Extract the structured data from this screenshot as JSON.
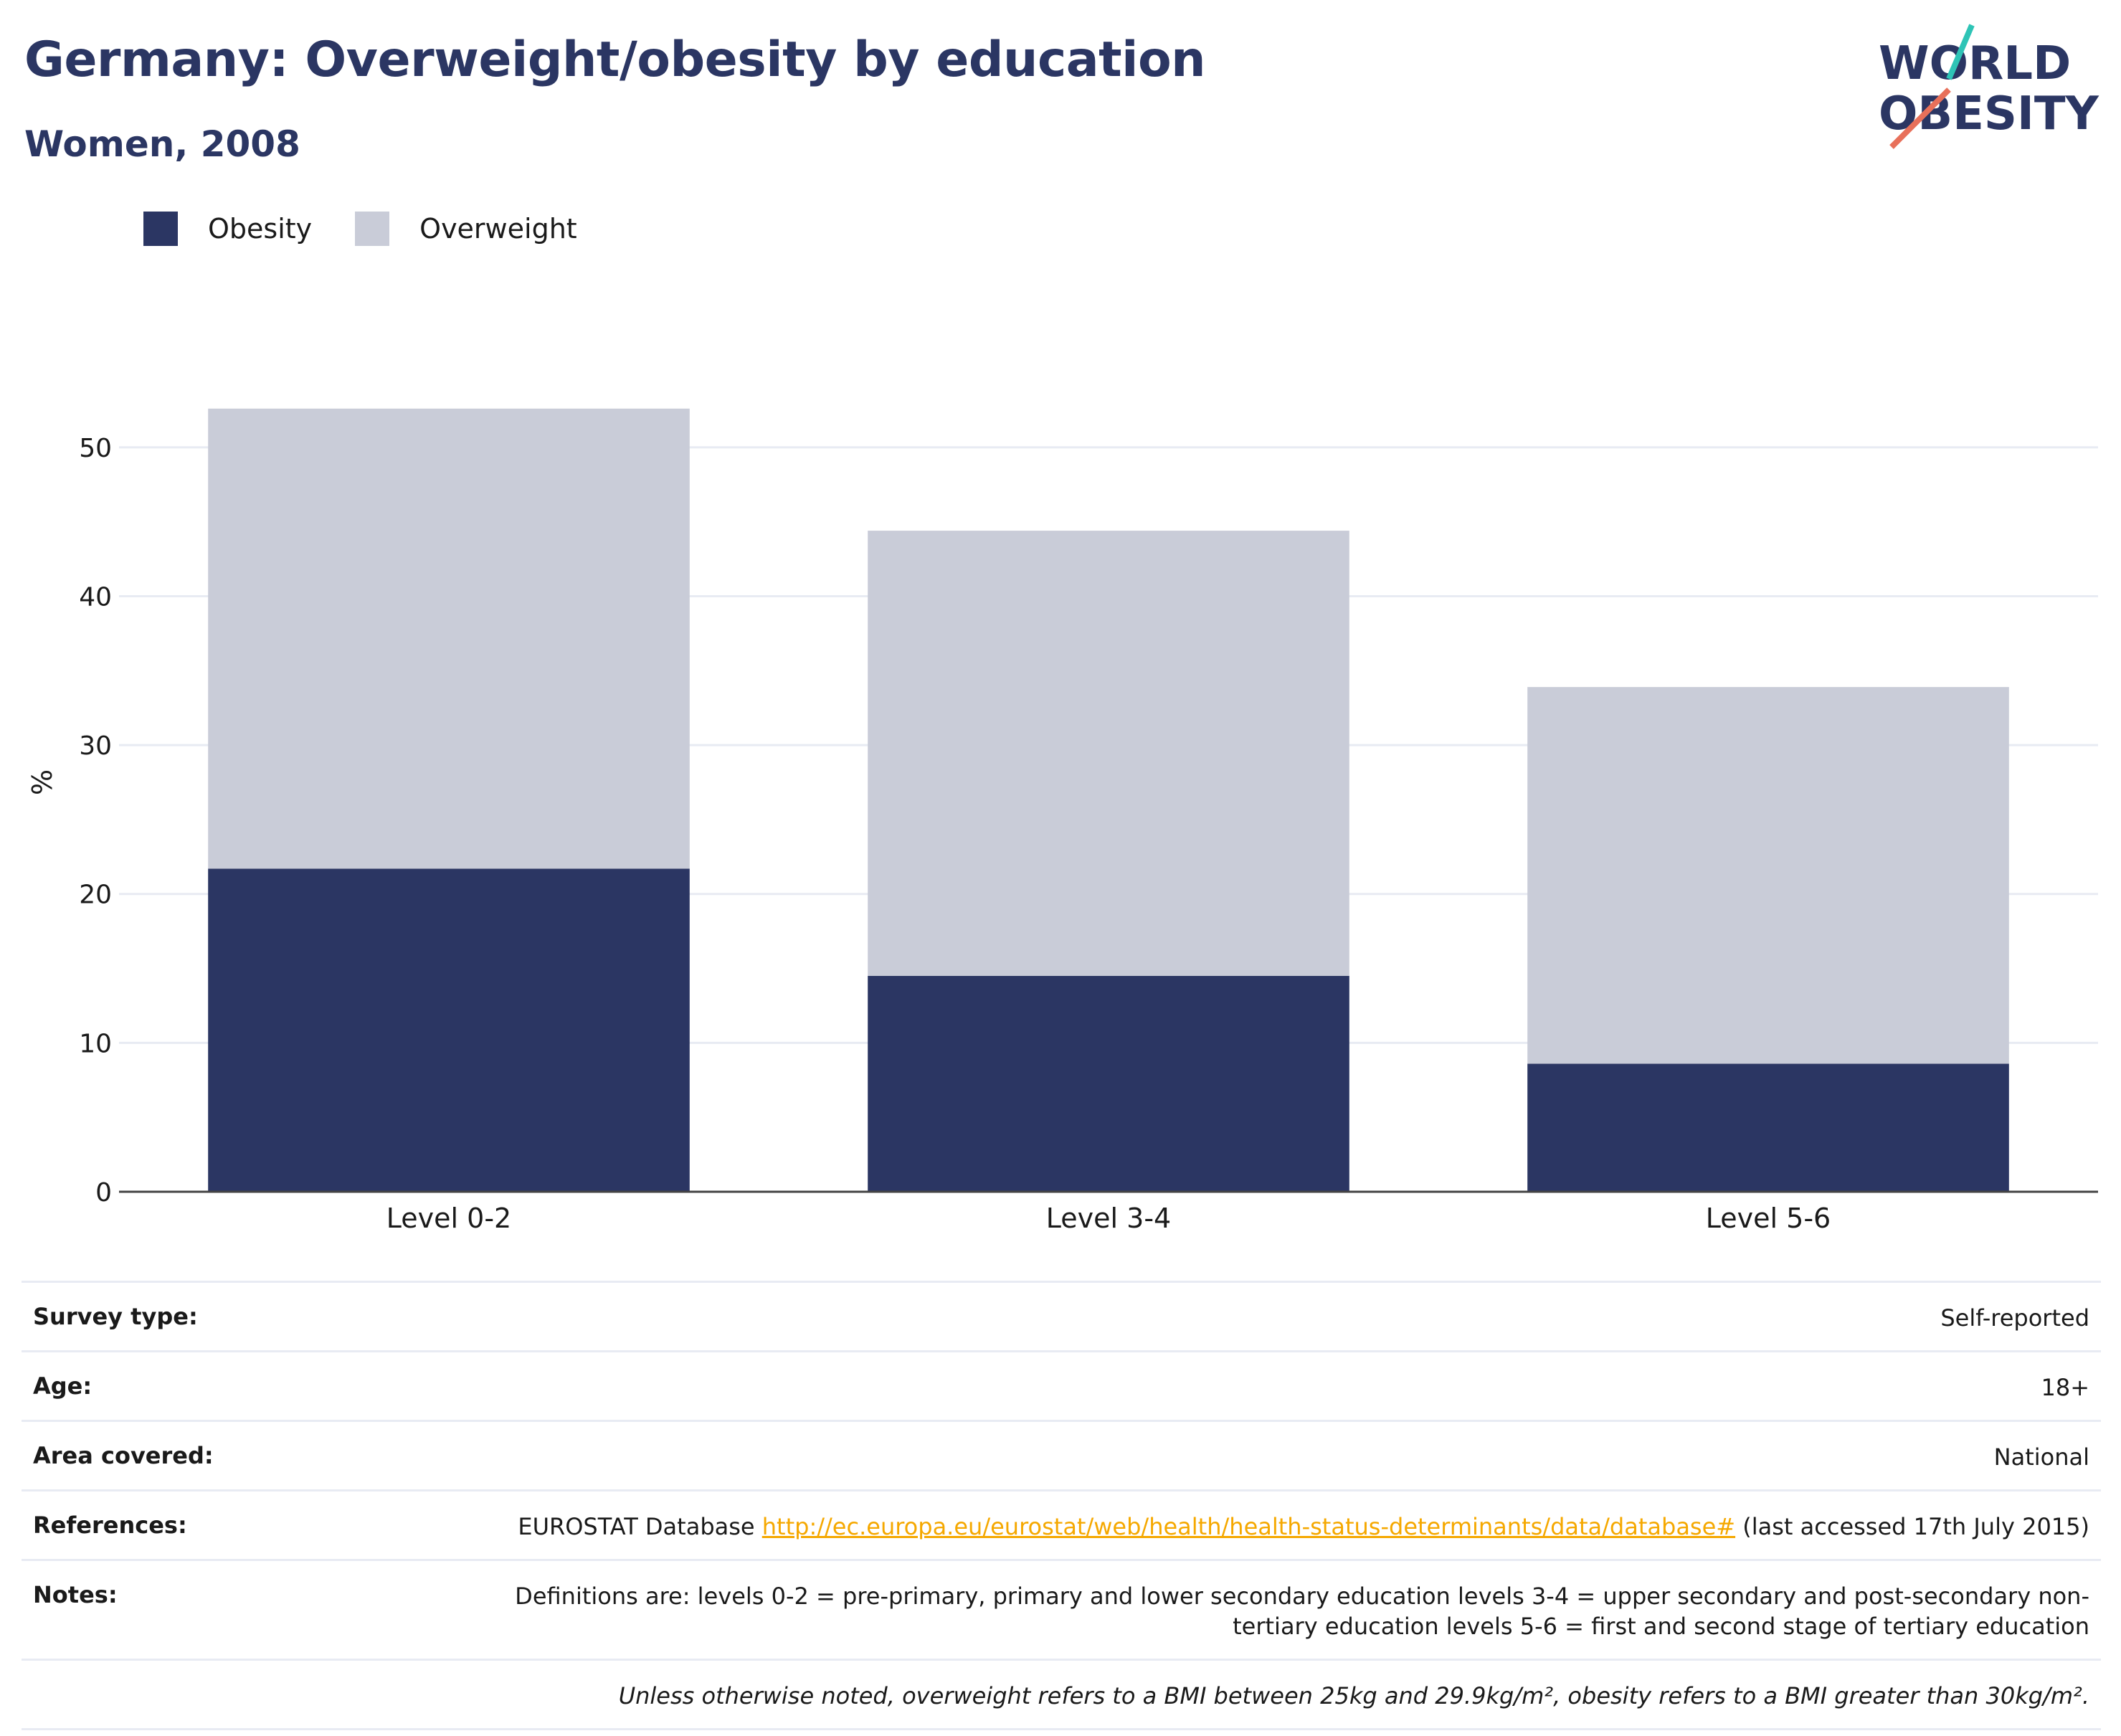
{
  "header": {
    "title": "Germany: Overweight/obesity by education",
    "subtitle": "Women, 2008"
  },
  "logo": {
    "line1": "WORLD",
    "line2": "OBESITY",
    "accent_teal": "#2ec4b6",
    "accent_coral": "#e8705a"
  },
  "legend": [
    {
      "label": "Obesity",
      "color": "#2b3663"
    },
    {
      "label": "Overweight",
      "color": "#c9ccd8"
    }
  ],
  "chart_data": {
    "type": "bar",
    "stacked": true,
    "categories": [
      "Level 0-2",
      "Level 3-4",
      "Level 5-6"
    ],
    "series": [
      {
        "name": "Obesity",
        "values": [
          21.7,
          14.5,
          8.6
        ],
        "color": "#2b3663"
      },
      {
        "name": "Overweight",
        "values": [
          30.9,
          29.9,
          25.3
        ],
        "color": "#c9ccd8"
      }
    ],
    "ylabel": "%",
    "ylim": [
      0,
      55
    ],
    "yticks": [
      0,
      10,
      20,
      30,
      40,
      50
    ],
    "grid": true,
    "legend_position": "top-left"
  },
  "meta": {
    "survey_type": {
      "label": "Survey type:",
      "value": "Self-reported"
    },
    "age": {
      "label": "Age:",
      "value": "18+"
    },
    "area": {
      "label": "Area covered:",
      "value": "National"
    },
    "references": {
      "label": "References:",
      "prefix": "EUROSTAT Database ",
      "link": "http://ec.europa.eu/eurostat/web/health/health-status-determinants/data/database#",
      "suffix": " (last accessed 17th July 2015)"
    },
    "notes": {
      "label": "Notes:",
      "value": "Definitions are: levels 0-2 = pre-primary, primary and lower secondary education levels 3-4 = upper secondary and post-secondary non-tertiary education levels 5-6 = first and second stage of tertiary education"
    },
    "footnote": "Unless otherwise noted, overweight refers to a BMI between 25kg and 29.9kg/m², obesity refers to a BMI greater than 30kg/m²."
  }
}
